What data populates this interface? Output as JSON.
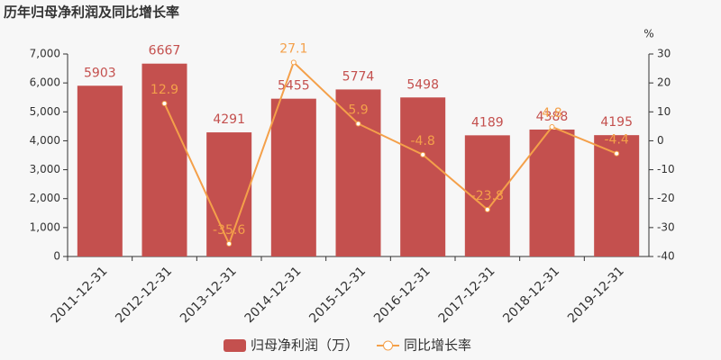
{
  "chart_data": {
    "type": "bar",
    "title": "历年归母净利润及同比增长率",
    "y2_unit": "%",
    "categories": [
      "2011-12-31",
      "2012-12-31",
      "2013-12-31",
      "2014-12-31",
      "2015-12-31",
      "2016-12-31",
      "2017-12-31",
      "2018-12-31",
      "2019-12-31"
    ],
    "series": [
      {
        "name": "归母净利润（万）",
        "type": "bar",
        "color": "#c4504e",
        "values": [
          5903,
          6667,
          4291,
          5455,
          5774,
          5498,
          4189,
          4388,
          4195
        ]
      },
      {
        "name": "同比增长率",
        "type": "line",
        "axis": "y2",
        "color": "#f4a04a",
        "values": [
          null,
          12.9,
          -35.6,
          27.1,
          5.9,
          -4.8,
          -23.8,
          4.8,
          -4.4
        ]
      }
    ],
    "ylim": [
      0,
      7000
    ],
    "yticks": [
      0,
      {
        "value": 1000,
        "label": "1,000"
      },
      {
        "value": 2000,
        "label": "2,000"
      },
      {
        "value": 3000,
        "label": "3,000"
      },
      {
        "value": 4000,
        "label": "4,000"
      },
      {
        "value": 5000,
        "label": "5,000"
      },
      {
        "value": 6000,
        "label": "6,000"
      },
      {
        "value": 7000,
        "label": "7,000"
      }
    ],
    "y2lim": [
      -40,
      30
    ],
    "y2ticks": [
      -40,
      -30,
      -20,
      -10,
      0,
      10,
      20,
      30
    ]
  }
}
